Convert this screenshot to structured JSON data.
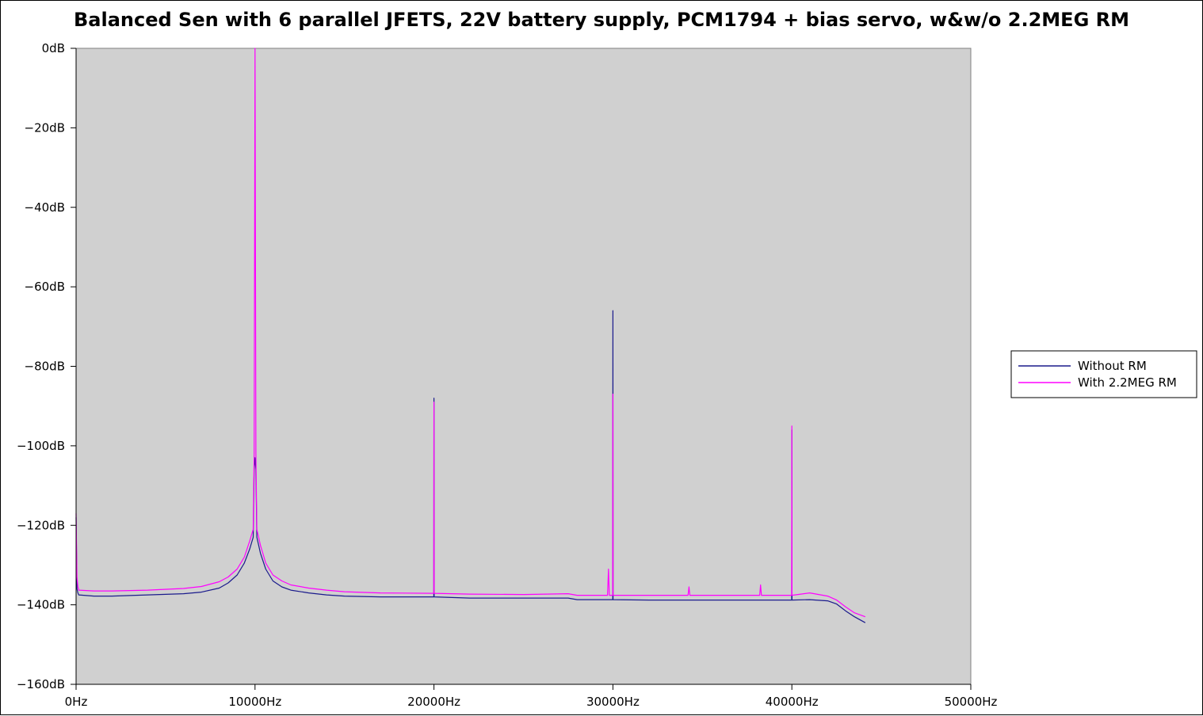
{
  "chart_data": {
    "type": "line",
    "title": "Balanced Sen with 6 parallel JFETS, 22V battery supply, PCM1794 + bias servo, w&w/o 2.2MEG RM",
    "xlabel": "",
    "ylabel": "",
    "xlim": [
      0,
      50000
    ],
    "ylim": [
      -160,
      0
    ],
    "x_ticks": [
      0,
      10000,
      20000,
      30000,
      40000,
      50000
    ],
    "x_tick_labels": [
      "0Hz",
      "10000Hz",
      "20000Hz",
      "30000Hz",
      "40000Hz",
      "50000Hz"
    ],
    "y_ticks": [
      0,
      -20,
      -40,
      -60,
      -80,
      -100,
      -120,
      -140,
      -160
    ],
    "y_tick_labels": [
      "0dB",
      "−20dB",
      "−40dB",
      "−60dB",
      "−80dB",
      "−100dB",
      "−120dB",
      "−140dB",
      "−160dB"
    ],
    "plot_background": "#d0d0d0",
    "grid": false,
    "legend_position": "right",
    "series": [
      {
        "name": "Without RM",
        "color": "#1a1a8c",
        "x": [
          0,
          50,
          100,
          150,
          1000,
          2000,
          4000,
          6000,
          7000,
          8000,
          8500,
          9000,
          9400,
          9700,
          9900,
          9950,
          10000,
          10050,
          10100,
          10300,
          10600,
          11000,
          11500,
          12000,
          13000,
          14000,
          15000,
          17000,
          19990,
          20000,
          20010,
          22000,
          25000,
          27500,
          28000,
          29990,
          30000,
          30010,
          32000,
          35000,
          38000,
          39990,
          40000,
          40010,
          41000,
          42000,
          42500,
          43000,
          43500,
          44100
        ],
        "values": [
          -118,
          -136,
          -137,
          -137.5,
          -137.8,
          -137.8,
          -137.5,
          -137.2,
          -136.8,
          -135.8,
          -134.5,
          -132.5,
          -129.5,
          -126,
          -123,
          -106,
          -103,
          -106,
          -123,
          -127,
          -131,
          -134,
          -135.5,
          -136.3,
          -137,
          -137.5,
          -137.8,
          -138,
          -138,
          -88,
          -138,
          -138.3,
          -138.3,
          -138.3,
          -138.7,
          -138.7,
          -66,
          -138.7,
          -138.8,
          -138.8,
          -138.8,
          -138.8,
          -96,
          -138.8,
          -138.7,
          -139,
          -139.8,
          -141.5,
          -143,
          -144.5
        ]
      },
      {
        "name": "With 2.2MEG RM",
        "color": "#ff00ff",
        "x": [
          0,
          50,
          100,
          150,
          1000,
          2000,
          4000,
          6000,
          7000,
          8000,
          8500,
          9000,
          9400,
          9700,
          9900,
          9950,
          10000,
          10050,
          10100,
          10300,
          10600,
          11000,
          11500,
          12000,
          13000,
          14000,
          15000,
          17000,
          19990,
          20000,
          20010,
          22000,
          25000,
          27500,
          28000,
          29700,
          29750,
          29800,
          29990,
          30000,
          30010,
          32000,
          34200,
          34250,
          34300,
          38200,
          38250,
          38300,
          39990,
          40000,
          40010,
          41000,
          42000,
          42500,
          43000,
          43500,
          44100
        ],
        "values": [
          -117,
          -133,
          -135.5,
          -136.3,
          -136.5,
          -136.5,
          -136.3,
          -135.9,
          -135.4,
          -134.2,
          -133,
          -131,
          -128,
          -124,
          -121,
          -102,
          0,
          -102,
          -121,
          -125,
          -129.5,
          -132.5,
          -134,
          -135,
          -135.8,
          -136.3,
          -136.7,
          -137,
          -137.1,
          -89,
          -137.1,
          -137.3,
          -137.4,
          -137.2,
          -137.6,
          -137.6,
          -131,
          -137.6,
          -137.6,
          -87,
          -137.6,
          -137.6,
          -137.6,
          -135.5,
          -137.6,
          -137.6,
          -135,
          -137.6,
          -137.6,
          -95,
          -137.6,
          -137,
          -137.8,
          -138.8,
          -140.5,
          -142,
          -143
        ]
      }
    ]
  }
}
